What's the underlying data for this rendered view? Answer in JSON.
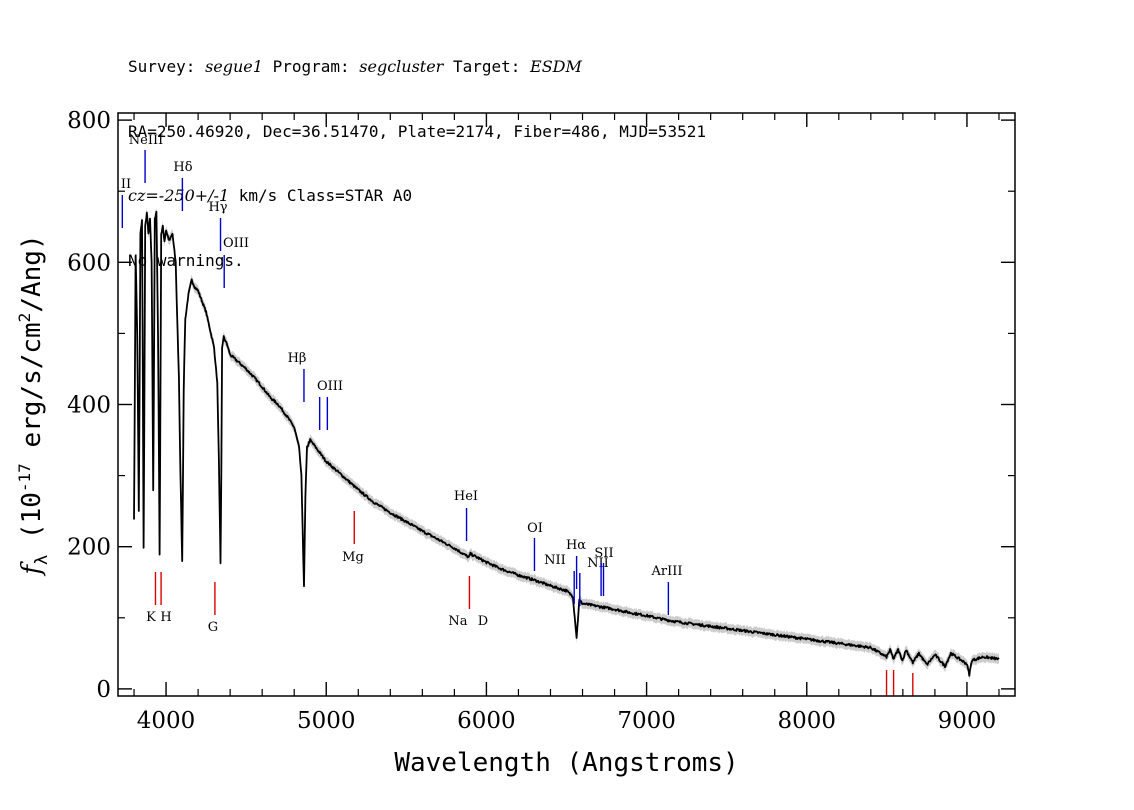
{
  "header": {
    "line1": {
      "survey_label": "Survey: ",
      "survey": "segue1",
      "program_label": " Program: ",
      "program": "segcluster",
      "target_label": " Target: ",
      "target": "ESDM"
    },
    "line2": "RA=250.46920, Dec=36.51470, Plate=2174, Fiber=486, MJD=53521",
    "line3": {
      "cz_label": "cz=",
      "cz_value": "-250+/-1",
      "rest": " km/s Class=STAR A0"
    },
    "line4": "No warnings."
  },
  "chart_data": {
    "type": "line",
    "title": "",
    "xlabel": "Wavelength (Angstroms)",
    "ylabel": "f_λ (10^-17 erg/s/cm^2/Ang)",
    "xlim": [
      3700,
      9300
    ],
    "ylim": [
      -10,
      810
    ],
    "x_ticks": [
      4000,
      5000,
      6000,
      7000,
      8000,
      9000
    ],
    "y_ticks": [
      0,
      200,
      400,
      600,
      800
    ],
    "grid": false,
    "colors": {
      "spectrum": "#000000",
      "error_band": "#aaaaaa",
      "emission_lines": "#0000cc",
      "absorption_lines": "#dd0000"
    },
    "series": [
      {
        "x": [
          3800,
          3810,
          3820,
          3830,
          3835,
          3840,
          3850,
          3860,
          3870,
          3880,
          3890,
          3900,
          3910,
          3920,
          3930,
          3940,
          3950,
          3960,
          3970,
          3980,
          3990,
          4000,
          4020,
          4040,
          4060,
          4080,
          4090,
          4101,
          4110,
          4120,
          4140,
          4160,
          4180,
          4200,
          4250,
          4300,
          4320,
          4330,
          4340,
          4345,
          4350,
          4360,
          4380,
          4400,
          4450,
          4500,
          4550,
          4600,
          4650,
          4700,
          4750,
          4800,
          4830,
          4845,
          4861,
          4870,
          4880,
          4900,
          4950,
          5000,
          5100,
          5200,
          5300,
          5400,
          5500,
          5600,
          5700,
          5800,
          5890,
          5900,
          6000,
          6100,
          6200,
          6300,
          6400,
          6500,
          6540,
          6563,
          6580,
          6600,
          6700,
          6800,
          6900,
          7000,
          7100,
          7200,
          7400,
          7600,
          7800,
          8000,
          8200,
          8400,
          8498,
          8520,
          8542,
          8570,
          8598,
          8620,
          8662,
          8700,
          8750,
          8800,
          8863,
          8900,
          9000,
          9015,
          9030,
          9100,
          9200
        ],
        "y": [
          240,
          610,
          500,
          250,
          420,
          640,
          660,
          200,
          650,
          670,
          640,
          660,
          600,
          280,
          660,
          670,
          500,
          190,
          640,
          650,
          630,
          645,
          630,
          640,
          600,
          440,
          300,
          180,
          420,
          520,
          555,
          575,
          565,
          560,
          530,
          480,
          430,
          320,
          175,
          300,
          480,
          495,
          485,
          470,
          460,
          450,
          438,
          425,
          410,
          400,
          385,
          368,
          340,
          300,
          145,
          270,
          340,
          350,
          335,
          320,
          300,
          280,
          262,
          248,
          235,
          222,
          210,
          198,
          185,
          190,
          178,
          168,
          160,
          153,
          145,
          138,
          130,
          72,
          125,
          120,
          116,
          112,
          107,
          103,
          98,
          94,
          88,
          82,
          76,
          70,
          64,
          58,
          45,
          55,
          42,
          55,
          40,
          55,
          37,
          50,
          34,
          48,
          32,
          50,
          35,
          20,
          40,
          45,
          42
        ]
      }
    ],
    "emission_lines": [
      {
        "name": "II",
        "wavelength": 3727
      },
      {
        "name": "NeIII",
        "wavelength": 3869
      },
      {
        "name": "Hδ",
        "wavelength": 4102
      },
      {
        "name": "Hγ",
        "wavelength": 4340
      },
      {
        "name": "OIII",
        "wavelength": 4363
      },
      {
        "name": "Hβ",
        "wavelength": 4861
      },
      {
        "name": "OIII",
        "wavelength": 4959
      },
      {
        "name": "",
        "wavelength": 5007
      },
      {
        "name": "HeI",
        "wavelength": 5876
      },
      {
        "name": "OI",
        "wavelength": 6300
      },
      {
        "name": "NII",
        "wavelength": 6548
      },
      {
        "name": "Hα",
        "wavelength": 6563
      },
      {
        "name": "NII",
        "wavelength": 6583
      },
      {
        "name": "SII",
        "wavelength": 6716
      },
      {
        "name": "",
        "wavelength": 6731
      },
      {
        "name": "ArIII",
        "wavelength": 7136
      }
    ],
    "absorption_lines": [
      {
        "name": "K",
        "wavelength": 3934
      },
      {
        "name": "H",
        "wavelength": 3969
      },
      {
        "name": "G",
        "wavelength": 4305
      },
      {
        "name": "Mg",
        "wavelength": 5175
      },
      {
        "name": "Na",
        "wavelength": 5894
      },
      {
        "name": "D",
        "wavelength": 5894
      },
      {
        "name": "",
        "wavelength": 8498
      },
      {
        "name": "",
        "wavelength": 8542
      },
      {
        "name": "",
        "wavelength": 8662
      }
    ]
  }
}
